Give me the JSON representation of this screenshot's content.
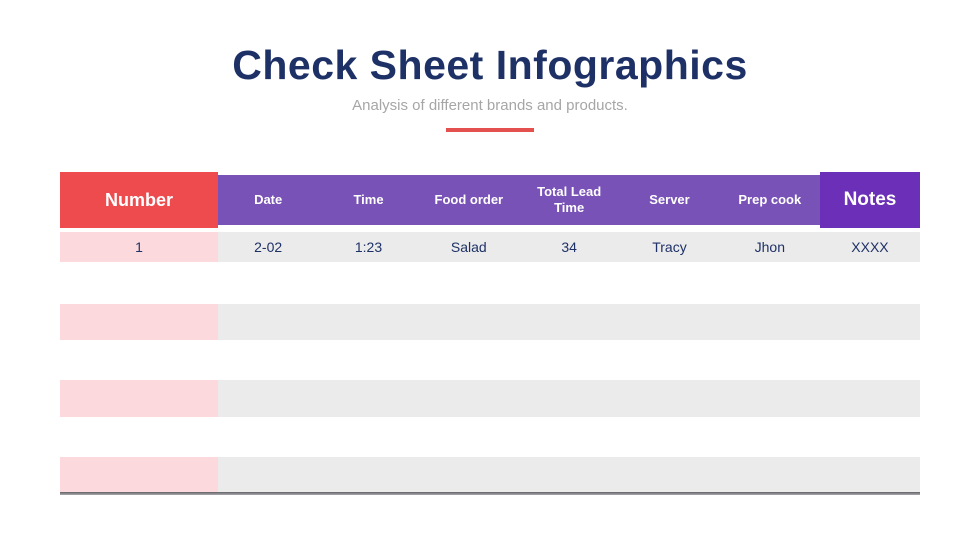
{
  "page": {
    "title": "Check Sheet Infographics",
    "subtitle": "Analysis of different brands and products."
  },
  "table": {
    "columns": [
      "Number",
      "Date",
      "Time",
      "Food order",
      "Total Lead Time",
      "Server",
      "Prep cook",
      "Notes"
    ],
    "rows": [
      {
        "cells": [
          "1",
          "2-02",
          "1:23",
          "Salad",
          "34",
          "Tracy",
          "Jhon",
          "XXXX"
        ]
      }
    ],
    "empty_rows": 3
  },
  "colors": {
    "accent_red": "#EE4B4F",
    "header_purple": "#7852B6",
    "notes_purple": "#6C30B8",
    "number_pink": "#FBD9DC",
    "row_gray": "#EBEBEB",
    "text_navy": "#1E3167",
    "subtitle_gray": "#A6A6A6",
    "divider_red": "#E4504E"
  }
}
